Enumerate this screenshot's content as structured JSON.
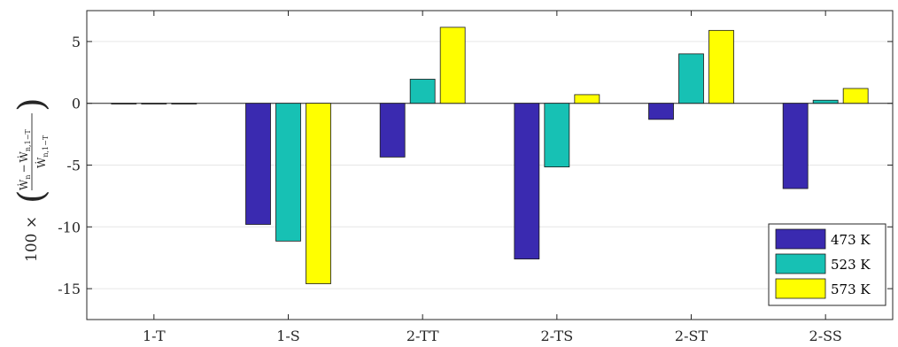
{
  "chart_data": {
    "type": "bar",
    "categories": [
      "1-T",
      "1-S",
      "2-TT",
      "2-TS",
      "2-ST",
      "2-SS"
    ],
    "series": [
      {
        "name": "473 K",
        "color": "#3A2AB0",
        "values": [
          -0.05,
          -9.8,
          -4.35,
          -12.6,
          -1.3,
          -6.9
        ]
      },
      {
        "name": "523 K",
        "color": "#17C1B4",
        "values": [
          -0.05,
          -11.15,
          1.95,
          -5.15,
          4.0,
          0.25
        ]
      },
      {
        "name": "573 K",
        "color": "#FFFF00",
        "values": [
          -0.05,
          -14.6,
          6.15,
          0.7,
          5.9,
          1.2
        ]
      }
    ],
    "ylim": [
      -17.5,
      7.5
    ],
    "yticks": [
      5,
      0,
      -5,
      -10,
      -15
    ],
    "ytick_labels": [
      "5",
      "0",
      "-5",
      "-10",
      "-15"
    ],
    "ylabel": {
      "prefix": "100 ×",
      "numerator": "Ẇ",
      "numerator_sub": "n",
      "minus": "−",
      "numerator2": "Ẇ",
      "numerator2_sub": "n,1−T",
      "denominator": "Ẇ",
      "denominator_sub": "n,1−T"
    },
    "grid": true,
    "legend_position": "bottom-right"
  }
}
